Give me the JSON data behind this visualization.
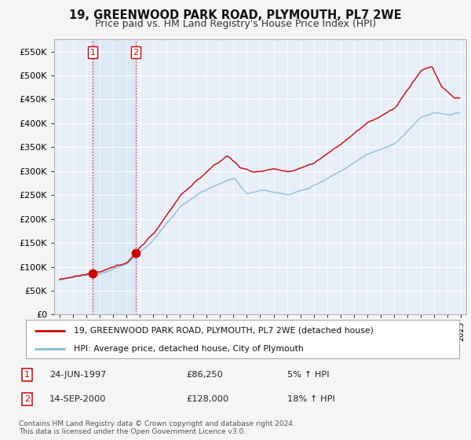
{
  "title": "19, GREENWOOD PARK ROAD, PLYMOUTH, PL7 2WE",
  "subtitle": "Price paid vs. HM Land Registry's House Price Index (HPI)",
  "legend_line1": "19, GREENWOOD PARK ROAD, PLYMOUTH, PL7 2WE (detached house)",
  "legend_line2": "HPI: Average price, detached house, City of Plymouth",
  "footnote": "Contains HM Land Registry data © Crown copyright and database right 2024.\nThis data is licensed under the Open Government Licence v3.0.",
  "purchase1_date": "24-JUN-1997",
  "purchase1_price": "£86,250",
  "purchase1_hpi": "5% ↑ HPI",
  "purchase2_date": "14-SEP-2000",
  "purchase2_price": "£128,000",
  "purchase2_hpi": "18% ↑ HPI",
  "purchase1_x": 1997.47,
  "purchase1_y": 86250,
  "purchase2_x": 2000.71,
  "purchase2_y": 128000,
  "hpi_color": "#7db8d8",
  "price_color": "#cc0000",
  "bg_color": "#f5f5f5",
  "plot_bg": "#e8eef8",
  "highlight_color": "#dce8f5",
  "grid_color": "#ffffff",
  "ylim": [
    0,
    575000
  ],
  "yticks": [
    0,
    50000,
    100000,
    150000,
    200000,
    250000,
    300000,
    350000,
    400000,
    450000,
    500000,
    550000
  ],
  "xmin": 1994.6,
  "xmax": 2025.4,
  "title_fontsize": 10.5,
  "subtitle_fontsize": 9
}
